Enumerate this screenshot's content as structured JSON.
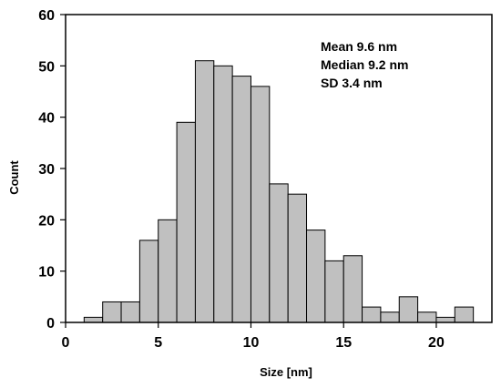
{
  "chart_data": {
    "type": "bar",
    "title": "",
    "xlabel": "Size [nm]",
    "ylabel": "Count",
    "xlim": [
      0,
      23
    ],
    "ylim": [
      0,
      60
    ],
    "grid": false,
    "bin_width": 1,
    "x_ticks": [
      0,
      5,
      10,
      15,
      20
    ],
    "y_ticks": [
      0,
      10,
      20,
      30,
      40,
      50,
      60
    ],
    "bins": [
      {
        "start": 1,
        "end": 2,
        "value": 1
      },
      {
        "start": 2,
        "end": 3,
        "value": 4
      },
      {
        "start": 3,
        "end": 4,
        "value": 4
      },
      {
        "start": 4,
        "end": 5,
        "value": 16
      },
      {
        "start": 5,
        "end": 6,
        "value": 20
      },
      {
        "start": 6,
        "end": 7,
        "value": 39
      },
      {
        "start": 7,
        "end": 8,
        "value": 51
      },
      {
        "start": 8,
        "end": 9,
        "value": 50
      },
      {
        "start": 9,
        "end": 10,
        "value": 48
      },
      {
        "start": 10,
        "end": 11,
        "value": 46
      },
      {
        "start": 11,
        "end": 12,
        "value": 27
      },
      {
        "start": 12,
        "end": 13,
        "value": 25
      },
      {
        "start": 13,
        "end": 14,
        "value": 18
      },
      {
        "start": 14,
        "end": 15,
        "value": 12
      },
      {
        "start": 15,
        "end": 16,
        "value": 13
      },
      {
        "start": 16,
        "end": 17,
        "value": 3
      },
      {
        "start": 17,
        "end": 18,
        "value": 2
      },
      {
        "start": 18,
        "end": 19,
        "value": 5
      },
      {
        "start": 19,
        "end": 20,
        "value": 2
      },
      {
        "start": 20,
        "end": 21,
        "value": 1
      },
      {
        "start": 21,
        "end": 22,
        "value": 3
      }
    ],
    "annotations": [
      "Mean  9.6 nm",
      "Median  9.2 nm",
      "SD 3.4 nm"
    ],
    "colors": {
      "bar_fill": "#c0c0c0",
      "bar_stroke": "#000000",
      "axis": "#000000"
    }
  }
}
